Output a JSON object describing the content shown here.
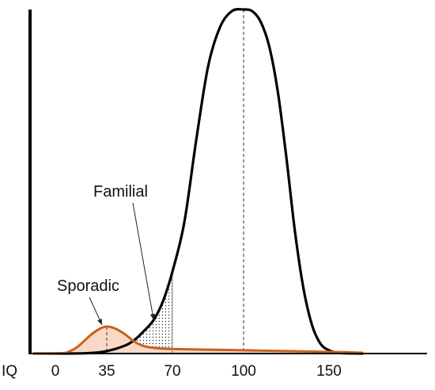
{
  "chart_data": {
    "type": "line",
    "xlabel": "IQ",
    "ylabel": "",
    "xlim": [
      -15,
      170
    ],
    "x_ticks": [
      "0",
      "35",
      "70",
      "100",
      "150"
    ],
    "grid": false,
    "series": [
      {
        "name": "Familial",
        "color": "#000000",
        "x": [
          -15,
          20,
          35,
          45,
          50,
          55,
          60,
          65,
          70,
          75,
          80,
          85,
          90,
          95,
          100,
          105,
          110,
          115,
          120,
          125,
          130,
          135,
          140,
          145,
          150,
          155,
          160,
          170
        ],
        "y": [
          0,
          0.3,
          3,
          10,
          17,
          28,
          41,
          64,
          100,
          160,
          260,
          350,
          398,
          418,
          420,
          418,
          405,
          375,
          320,
          240,
          150,
          80,
          35,
          12,
          4,
          1,
          0.3,
          0
        ]
      },
      {
        "name": "Sporadic",
        "color": "#c8621c",
        "fill": "#f9d9c5",
        "x": [
          -15,
          5,
          10,
          15,
          20,
          25,
          30,
          35,
          40,
          45,
          50,
          55,
          60,
          70,
          100,
          150,
          170
        ],
        "y": [
          0,
          0.5,
          3,
          8,
          16,
          24,
          30,
          33,
          30,
          23,
          14,
          9,
          7,
          5.5,
          4,
          2,
          1
        ]
      }
    ],
    "shaded_region": {
      "x_from": 35,
      "x_to": 70,
      "pattern": "dotted"
    },
    "mean_lines": [
      35,
      100
    ],
    "annotations": [
      {
        "text": "Familial",
        "points_to_x": 60
      },
      {
        "text": "Sporadic",
        "points_to_x": 35
      }
    ]
  }
}
